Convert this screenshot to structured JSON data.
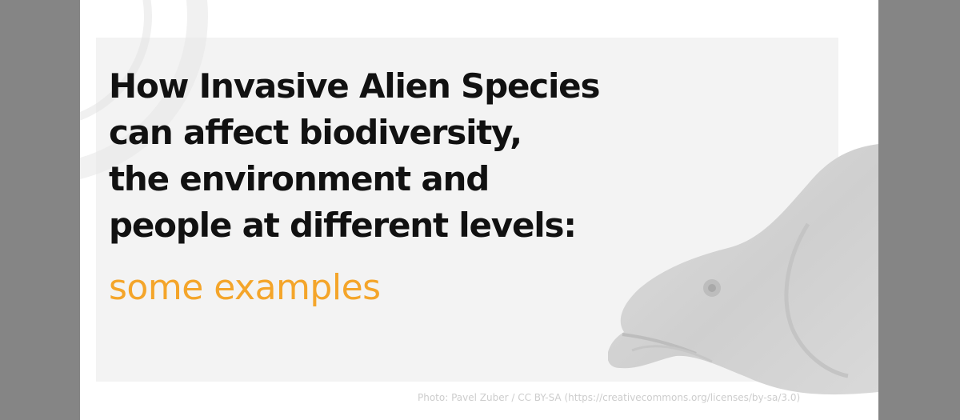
{
  "slide": {
    "heading_lines": [
      "How Invasive Alien Species",
      "can affect biodiversity,",
      "the environment and",
      "people at different levels:"
    ],
    "subheading": "some examples",
    "photo_credit": "Photo: Pavel Zuber / CC BY-SA (https://creativecommons.org/licenses/by-sa/3.0)"
  },
  "colors": {
    "background": "#858585",
    "slide": "#ffffff",
    "panel": "#f3f3f3",
    "heading": "#111111",
    "accent": "#f4a52a",
    "credit": "#cdcdcd"
  },
  "image": {
    "subject": "fish"
  }
}
